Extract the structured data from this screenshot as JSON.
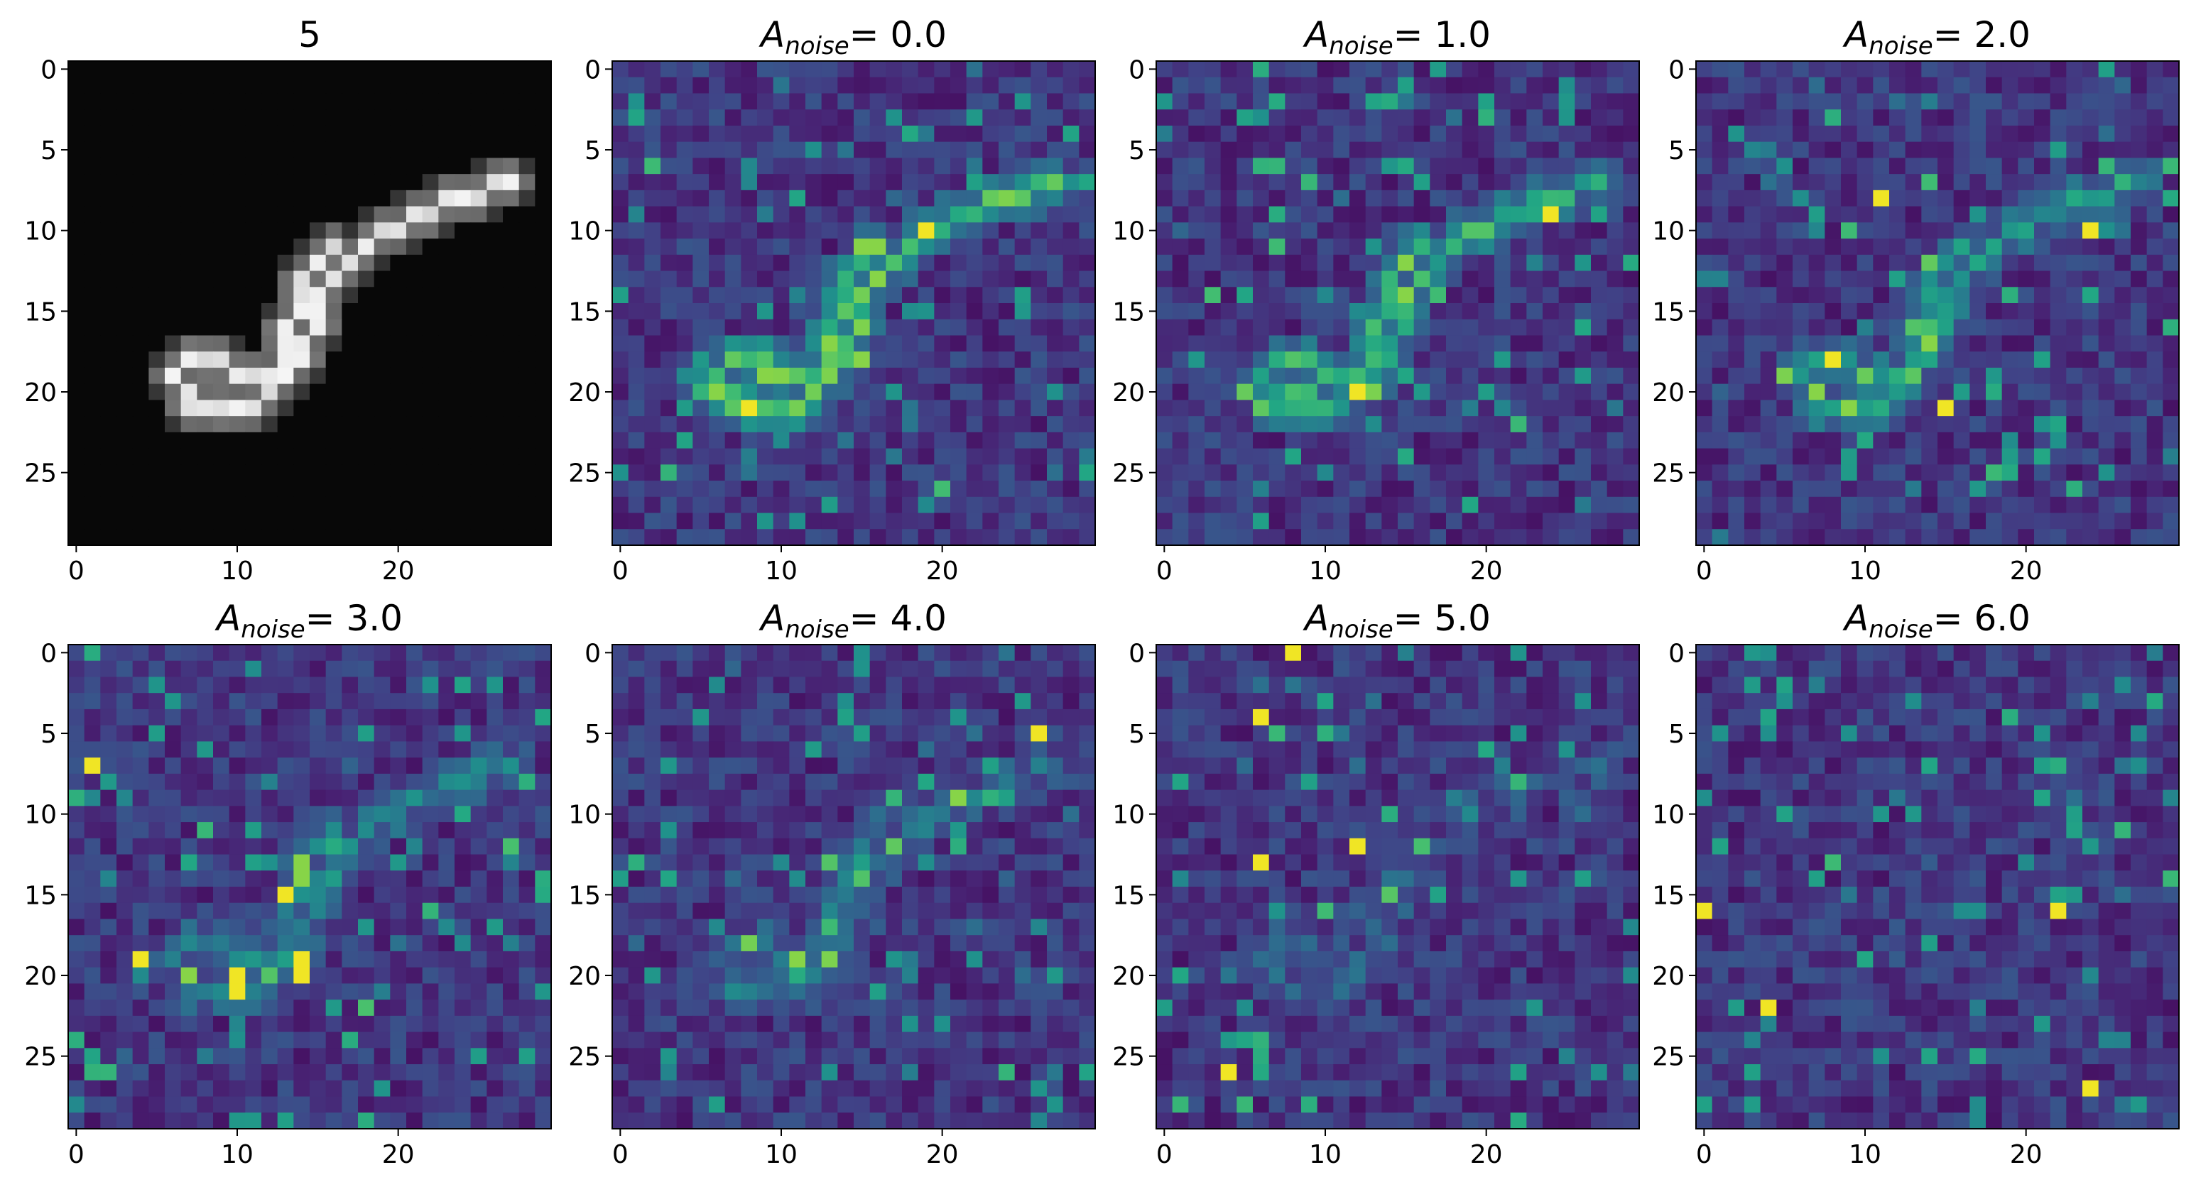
{
  "chart_data": {
    "type": "heatmap",
    "layout": "2 rows x 4 columns",
    "grid_size": [
      30,
      30
    ],
    "x_ticks": [
      0,
      10,
      20
    ],
    "y_ticks": [
      0,
      5,
      10,
      15,
      20,
      25
    ],
    "xlim": [
      -0.5,
      29.5
    ],
    "ylim": [
      29.5,
      -0.5
    ],
    "panels": [
      {
        "title": "5",
        "colormap": "gray",
        "noise": null,
        "stroke": [
          [
            27,
            7
          ],
          [
            26,
            7
          ],
          [
            25,
            8
          ],
          [
            24,
            8
          ],
          [
            23,
            8
          ],
          [
            22,
            9
          ],
          [
            21,
            9
          ],
          [
            20,
            10
          ],
          [
            19,
            10
          ],
          [
            18,
            11
          ],
          [
            17,
            12
          ],
          [
            16,
            13
          ],
          [
            15,
            14
          ],
          [
            14,
            15
          ],
          [
            13,
            16
          ],
          [
            13,
            17
          ],
          [
            14,
            18
          ],
          [
            13,
            19
          ],
          [
            12,
            20
          ],
          [
            11,
            21
          ],
          [
            10,
            21
          ],
          [
            9,
            21
          ],
          [
            8,
            21
          ],
          [
            7,
            21
          ],
          [
            7,
            20
          ],
          [
            6,
            19
          ],
          [
            7,
            18
          ],
          [
            8,
            18
          ],
          [
            9,
            18
          ],
          [
            10,
            19
          ],
          [
            11,
            19
          ],
          [
            12,
            19
          ],
          [
            13,
            18
          ],
          [
            14,
            17
          ],
          [
            15,
            16
          ],
          [
            15,
            15
          ],
          [
            14,
            14
          ],
          [
            14,
            13
          ],
          [
            15,
            12
          ],
          [
            16,
            11
          ]
        ]
      },
      {
        "title_prefix": "A",
        "title_sub": "noise",
        "title_value": "= 0.0",
        "colormap": "viridis",
        "noise": 0.0,
        "bright": [
          [
            8,
            21
          ],
          [
            19,
            10
          ]
        ]
      },
      {
        "title_prefix": "A",
        "title_sub": "noise",
        "title_value": "= 1.0",
        "colormap": "viridis",
        "noise": 1.0,
        "bright": [
          [
            24,
            9
          ],
          [
            12,
            20
          ]
        ]
      },
      {
        "title_prefix": "A",
        "title_sub": "noise",
        "title_value": "= 2.0",
        "colormap": "viridis",
        "noise": 2.0,
        "bright": [
          [
            11,
            8
          ],
          [
            8,
            18
          ],
          [
            15,
            21
          ],
          [
            24,
            10
          ]
        ]
      },
      {
        "title_prefix": "A",
        "title_sub": "noise",
        "title_value": "= 3.0",
        "colormap": "viridis",
        "noise": 3.0,
        "bright": [
          [
            1,
            7
          ],
          [
            10,
            20
          ],
          [
            10,
            21
          ],
          [
            14,
            19
          ],
          [
            14,
            20
          ],
          [
            4,
            19
          ],
          [
            13,
            15
          ]
        ]
      },
      {
        "title_prefix": "A",
        "title_sub": "noise",
        "title_value": "= 4.0",
        "colormap": "viridis",
        "noise": 4.0,
        "bright": [
          [
            26,
            5
          ]
        ]
      },
      {
        "title_prefix": "A",
        "title_sub": "noise",
        "title_value": "= 5.0",
        "colormap": "viridis",
        "noise": 5.0,
        "bright": [
          [
            6,
            13
          ],
          [
            12,
            12
          ],
          [
            6,
            4
          ],
          [
            8,
            0
          ],
          [
            4,
            26
          ]
        ]
      },
      {
        "title_prefix": "A",
        "title_sub": "noise",
        "title_value": "= 6.0",
        "colormap": "viridis",
        "noise": 6.0,
        "bright": [
          [
            0,
            16
          ],
          [
            22,
            16
          ],
          [
            4,
            22
          ],
          [
            24,
            27
          ]
        ]
      }
    ]
  }
}
